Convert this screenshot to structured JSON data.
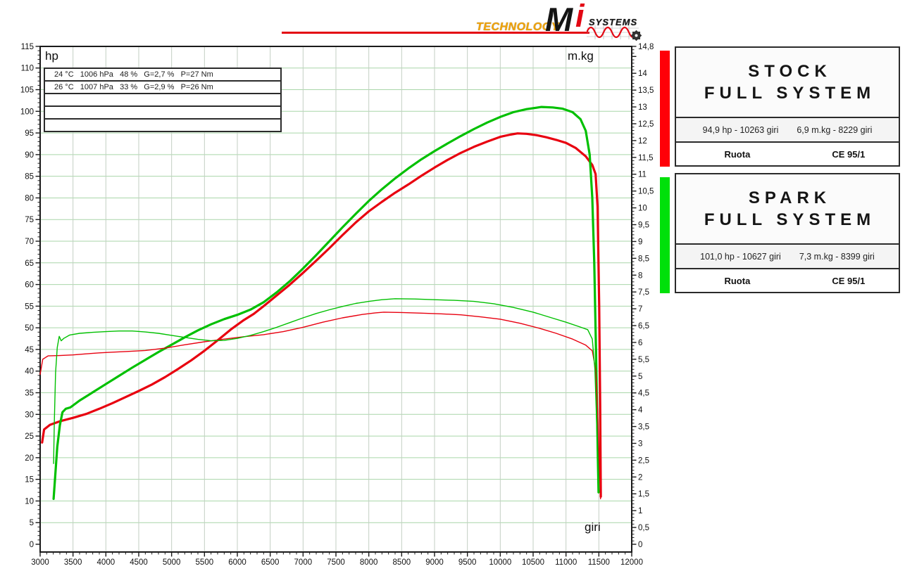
{
  "logo": {
    "technology": "TECHNOLOGY",
    "brand_m": "M",
    "brand_i": "i",
    "systems": "SYSTEMS",
    "accent_red": "#e30613",
    "accent_orange": "#f0a30a"
  },
  "chart": {
    "hp_label": "hp",
    "mkg_label": "m.kg",
    "giri_label": "giri",
    "info_rows": [
      "24 °C   1006 hPa   48 %   G=2,7 %   P=27 Nm",
      "26 °C   1007 hPa   33 %   G=2,9 %   P=26 Nm",
      "",
      "",
      ""
    ]
  },
  "legend": {
    "panels": [
      {
        "title_line1": "STOCK",
        "title_line2": "FULL SYSTEM",
        "stats_hp": "94,9 hp - 10263 giri",
        "stats_torque": "6,9 m.kg - 8229 giri",
        "ruota_label": "Ruota",
        "ce_label": "CE 95/1",
        "bar_color": "#ff0008"
      },
      {
        "title_line1": "SPARK",
        "title_line2": "FULL SYSTEM",
        "stats_hp": "101,0 hp - 10627 giri",
        "stats_torque": "7,3 m.kg - 8399 giri",
        "ruota_label": "Ruota",
        "ce_label": "CE 95/1",
        "bar_color": "#00e00a"
      }
    ]
  },
  "chart_data": {
    "type": "line",
    "title": "",
    "xlabel": "giri",
    "ylabel": "hp",
    "y2label": "m.kg",
    "x_range": [
      3000,
      12000
    ],
    "x_tick_step": 500,
    "x_minor_step": 100,
    "y_range": [
      0,
      115
    ],
    "y_tick_step": 5,
    "y_minor_step": 1,
    "y2_range": [
      0,
      14.8
    ],
    "y2_tick_step": 0.5,
    "y2_minor_step": 0.1,
    "grid": true,
    "grid_h_color": "#a9d6a9",
    "grid_v_color": "#c3cfc3",
    "legend_position": "right-outside",
    "series": [
      {
        "name": "stock-power-hp",
        "color": "#e8000f",
        "width": 3.2,
        "axis": "hp",
        "points": [
          [
            3030,
            23.5
          ],
          [
            3060,
            26.5
          ],
          [
            3150,
            27.6
          ],
          [
            3300,
            28.4
          ],
          [
            3500,
            29.2
          ],
          [
            3700,
            30.1
          ],
          [
            3900,
            31.3
          ],
          [
            4100,
            32.6
          ],
          [
            4300,
            34.0
          ],
          [
            4500,
            35.4
          ],
          [
            4700,
            36.9
          ],
          [
            4900,
            38.6
          ],
          [
            5100,
            40.5
          ],
          [
            5300,
            42.5
          ],
          [
            5500,
            44.7
          ],
          [
            5700,
            47.1
          ],
          [
            5900,
            49.6
          ],
          [
            6100,
            51.8
          ],
          [
            6250,
            53.2
          ],
          [
            6400,
            55.0
          ],
          [
            6600,
            57.5
          ],
          [
            6800,
            60.0
          ],
          [
            7000,
            62.7
          ],
          [
            7200,
            65.5
          ],
          [
            7400,
            68.4
          ],
          [
            7600,
            71.4
          ],
          [
            7800,
            74.3
          ],
          [
            8000,
            76.9
          ],
          [
            8200,
            79.1
          ],
          [
            8400,
            81.2
          ],
          [
            8600,
            83.1
          ],
          [
            8800,
            85.1
          ],
          [
            9000,
            87.0
          ],
          [
            9200,
            88.8
          ],
          [
            9400,
            90.4
          ],
          [
            9600,
            91.8
          ],
          [
            9800,
            93.0
          ],
          [
            10000,
            94.1
          ],
          [
            10150,
            94.6
          ],
          [
            10263,
            94.9
          ],
          [
            10400,
            94.8
          ],
          [
            10550,
            94.5
          ],
          [
            10700,
            94.0
          ],
          [
            10850,
            93.4
          ],
          [
            11000,
            92.7
          ],
          [
            11150,
            91.5
          ],
          [
            11300,
            89.6
          ],
          [
            11400,
            87.6
          ],
          [
            11450,
            85.5
          ],
          [
            11480,
            78.0
          ],
          [
            11505,
            55.0
          ],
          [
            11520,
            32.0
          ],
          [
            11530,
            11.0
          ]
        ]
      },
      {
        "name": "spark-power-hp",
        "color": "#00c000",
        "width": 3.2,
        "axis": "hp",
        "points": [
          [
            3205,
            10.5
          ],
          [
            3230,
            16.0
          ],
          [
            3260,
            22.5
          ],
          [
            3300,
            27.5
          ],
          [
            3340,
            30.5
          ],
          [
            3390,
            31.3
          ],
          [
            3460,
            31.6
          ],
          [
            3600,
            33.2
          ],
          [
            3800,
            35.1
          ],
          [
            4000,
            37.0
          ],
          [
            4200,
            38.9
          ],
          [
            4400,
            40.8
          ],
          [
            4600,
            42.6
          ],
          [
            4800,
            44.4
          ],
          [
            5000,
            46.1
          ],
          [
            5200,
            47.8
          ],
          [
            5400,
            49.4
          ],
          [
            5600,
            50.8
          ],
          [
            5800,
            52.0
          ],
          [
            6000,
            53.0
          ],
          [
            6200,
            54.2
          ],
          [
            6400,
            55.9
          ],
          [
            6600,
            58.2
          ],
          [
            6800,
            60.8
          ],
          [
            7000,
            63.7
          ],
          [
            7200,
            66.8
          ],
          [
            7400,
            70.0
          ],
          [
            7600,
            73.2
          ],
          [
            7800,
            76.3
          ],
          [
            8000,
            79.3
          ],
          [
            8200,
            82.0
          ],
          [
            8400,
            84.5
          ],
          [
            8600,
            86.8
          ],
          [
            8800,
            88.9
          ],
          [
            9000,
            90.8
          ],
          [
            9200,
            92.6
          ],
          [
            9400,
            94.3
          ],
          [
            9600,
            95.9
          ],
          [
            9800,
            97.4
          ],
          [
            10000,
            98.7
          ],
          [
            10200,
            99.8
          ],
          [
            10400,
            100.5
          ],
          [
            10627,
            101.0
          ],
          [
            10800,
            100.9
          ],
          [
            10950,
            100.6
          ],
          [
            11100,
            99.8
          ],
          [
            11220,
            98.2
          ],
          [
            11300,
            95.5
          ],
          [
            11360,
            90.0
          ],
          [
            11400,
            80.0
          ],
          [
            11430,
            65.0
          ],
          [
            11460,
            42.0
          ],
          [
            11485,
            20.0
          ],
          [
            11495,
            12.0
          ]
        ]
      },
      {
        "name": "stock-torque-mkg",
        "color": "#e8000f",
        "width": 1.4,
        "axis": "mkg",
        "points": [
          [
            3000,
            5.05
          ],
          [
            3040,
            5.5
          ],
          [
            3120,
            5.6
          ],
          [
            3300,
            5.61
          ],
          [
            3500,
            5.63
          ],
          [
            3700,
            5.66
          ],
          [
            3900,
            5.69
          ],
          [
            4100,
            5.71
          ],
          [
            4300,
            5.73
          ],
          [
            4600,
            5.76
          ],
          [
            4900,
            5.83
          ],
          [
            5200,
            5.93
          ],
          [
            5500,
            6.02
          ],
          [
            5800,
            6.1
          ],
          [
            6100,
            6.17
          ],
          [
            6400,
            6.23
          ],
          [
            6700,
            6.32
          ],
          [
            7000,
            6.45
          ],
          [
            7300,
            6.6
          ],
          [
            7600,
            6.73
          ],
          [
            7900,
            6.83
          ],
          [
            8100,
            6.88
          ],
          [
            8229,
            6.9
          ],
          [
            8500,
            6.89
          ],
          [
            8800,
            6.87
          ],
          [
            9100,
            6.85
          ],
          [
            9400,
            6.82
          ],
          [
            9700,
            6.76
          ],
          [
            10000,
            6.69
          ],
          [
            10300,
            6.57
          ],
          [
            10600,
            6.42
          ],
          [
            10850,
            6.27
          ],
          [
            11100,
            6.1
          ],
          [
            11300,
            5.92
          ],
          [
            11400,
            5.75
          ],
          [
            11450,
            5.2
          ],
          [
            11480,
            4.0
          ],
          [
            11505,
            2.5
          ],
          [
            11525,
            1.35
          ]
        ]
      },
      {
        "name": "spark-torque-mkg",
        "color": "#00c000",
        "width": 1.4,
        "axis": "mkg",
        "points": [
          [
            3205,
            2.4
          ],
          [
            3215,
            3.6
          ],
          [
            3235,
            5.1
          ],
          [
            3260,
            5.85
          ],
          [
            3290,
            6.18
          ],
          [
            3320,
            6.05
          ],
          [
            3360,
            6.12
          ],
          [
            3450,
            6.22
          ],
          [
            3600,
            6.27
          ],
          [
            3800,
            6.3
          ],
          [
            4000,
            6.32
          ],
          [
            4200,
            6.34
          ],
          [
            4400,
            6.34
          ],
          [
            4600,
            6.31
          ],
          [
            4800,
            6.27
          ],
          [
            5000,
            6.21
          ],
          [
            5200,
            6.15
          ],
          [
            5400,
            6.09
          ],
          [
            5600,
            6.05
          ],
          [
            5800,
            6.06
          ],
          [
            6000,
            6.12
          ],
          [
            6200,
            6.21
          ],
          [
            6400,
            6.32
          ],
          [
            6600,
            6.45
          ],
          [
            6800,
            6.59
          ],
          [
            7000,
            6.73
          ],
          [
            7200,
            6.86
          ],
          [
            7400,
            6.97
          ],
          [
            7600,
            7.07
          ],
          [
            7800,
            7.16
          ],
          [
            8000,
            7.22
          ],
          [
            8200,
            7.27
          ],
          [
            8399,
            7.3
          ],
          [
            8700,
            7.29
          ],
          [
            9000,
            7.27
          ],
          [
            9300,
            7.25
          ],
          [
            9600,
            7.22
          ],
          [
            9900,
            7.15
          ],
          [
            10200,
            7.04
          ],
          [
            10500,
            6.9
          ],
          [
            10800,
            6.72
          ],
          [
            11000,
            6.6
          ],
          [
            11200,
            6.47
          ],
          [
            11330,
            6.38
          ],
          [
            11400,
            6.1
          ],
          [
            11440,
            5.2
          ],
          [
            11470,
            3.4
          ],
          [
            11490,
            1.6
          ]
        ]
      }
    ]
  }
}
